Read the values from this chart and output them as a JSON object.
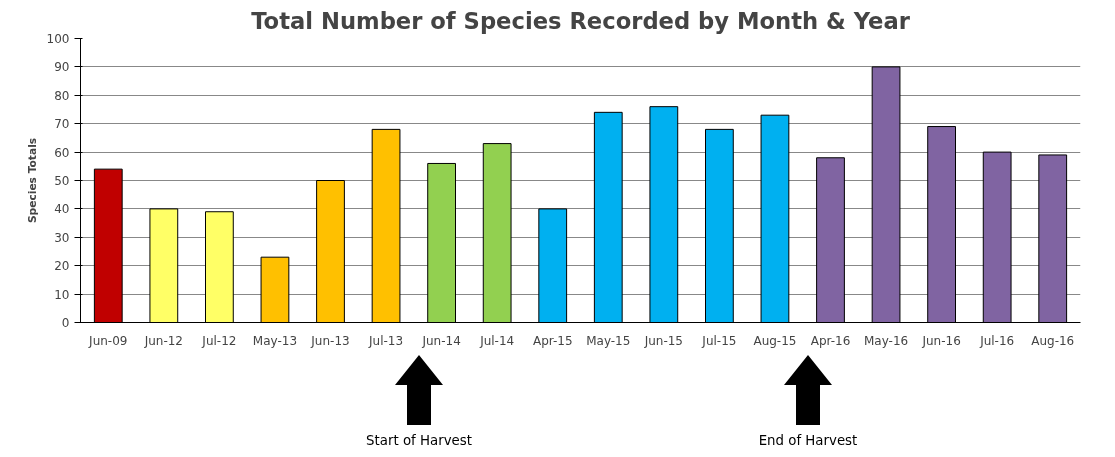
{
  "chart_data": {
    "type": "bar",
    "title": "Total Number of Species Recorded by Month & Year",
    "ylabel": "Species Totals",
    "categories": [
      "Jun-09",
      "Jun-12",
      "Jul-12",
      "May-13",
      "Jun-13",
      "Jul-13",
      "Jun-14",
      "Jul-14",
      "Apr-15",
      "May-15",
      "Jun-15",
      "Jul-15",
      "Aug-15",
      "Apr-16",
      "May-16",
      "Jun-16",
      "Jul-16",
      "Aug-16"
    ],
    "values": [
      54,
      40,
      39,
      23,
      50,
      68,
      56,
      63,
      40,
      74,
      76,
      68,
      73,
      58,
      90,
      69,
      60,
      59
    ],
    "colors": [
      "#c00000",
      "#ffff66",
      "#ffff66",
      "#ffc000",
      "#ffc000",
      "#ffc000",
      "#92d050",
      "#92d050",
      "#00b0f0",
      "#00b0f0",
      "#00b0f0",
      "#00b0f0",
      "#00b0f0",
      "#8064a2",
      "#8064a2",
      "#8064a2",
      "#8064a2",
      "#8064a2"
    ],
    "ylim": [
      0,
      100
    ],
    "yticks": [
      0,
      10,
      20,
      30,
      40,
      50,
      60,
      70,
      80,
      90,
      100
    ],
    "grid": "y",
    "annotations": [
      "Start of Harvest",
      "End of Harvest"
    ]
  }
}
